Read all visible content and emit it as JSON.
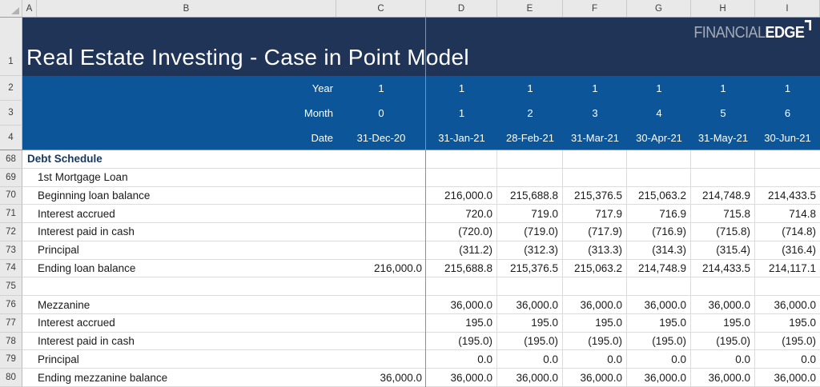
{
  "app": {
    "title": "Real Estate Investing - Case in Point Model",
    "logo": {
      "part1": "FINANCIAL",
      "part2": "EDGE"
    }
  },
  "colors": {
    "navy": "#1F3456",
    "band_blue": "#0B5598",
    "section_text": "#17375E",
    "pane_line": "#8F8F8F",
    "gridline": "#DCDCDC",
    "header_bg": "#E9E9E9"
  },
  "grid": {
    "column_headers": [
      "A",
      "B",
      "C",
      "D",
      "E",
      "F",
      "G",
      "H",
      "I"
    ],
    "title_row": {
      "num": "1"
    },
    "frozen_rows": [
      {
        "num": "2",
        "label": "Year",
        "c": "1",
        "values": [
          "1",
          "1",
          "1",
          "1",
          "1",
          "1"
        ]
      },
      {
        "num": "3",
        "label": "Month",
        "c": "0",
        "values": [
          "1",
          "2",
          "3",
          "4",
          "5",
          "6"
        ]
      },
      {
        "num": "4",
        "label": "Date",
        "c": "31-Dec-20",
        "values": [
          "31-Jan-21",
          "28-Feb-21",
          "31-Mar-21",
          "30-Apr-21",
          "31-May-21",
          "30-Jun-21"
        ]
      }
    ],
    "rows": [
      {
        "num": "68",
        "label": "Debt Schedule",
        "style": "section",
        "c": "",
        "values": [
          "",
          "",
          "",
          "",
          "",
          ""
        ]
      },
      {
        "num": "69",
        "label": "1st Mortgage Loan",
        "style": "",
        "c": "",
        "values": [
          "",
          "",
          "",
          "",
          "",
          ""
        ]
      },
      {
        "num": "70",
        "label": "Beginning loan balance",
        "style": "",
        "c": "",
        "values": [
          "216,000.0",
          "215,688.8",
          "215,376.5",
          "215,063.2",
          "214,748.9",
          "214,433.5"
        ]
      },
      {
        "num": "71",
        "label": "Interest accrued",
        "style": "",
        "c": "",
        "values": [
          "720.0",
          "719.0",
          "717.9",
          "716.9",
          "715.8",
          "714.8"
        ]
      },
      {
        "num": "72",
        "label": "Interest paid in cash",
        "style": "",
        "c": "",
        "values": [
          "(720.0)",
          "(719.0)",
          "(717.9)",
          "(716.9)",
          "(715.8)",
          "(714.8)"
        ]
      },
      {
        "num": "73",
        "label": "Principal",
        "style": "",
        "c": "",
        "values": [
          "(311.2)",
          "(312.3)",
          "(313.3)",
          "(314.3)",
          "(315.4)",
          "(316.4)"
        ]
      },
      {
        "num": "74",
        "label": "Ending loan balance",
        "style": "",
        "c": "216,000.0",
        "values": [
          "215,688.8",
          "215,376.5",
          "215,063.2",
          "214,748.9",
          "214,433.5",
          "214,117.1"
        ]
      },
      {
        "num": "75",
        "label": "",
        "style": "",
        "c": "",
        "values": [
          "",
          "",
          "",
          "",
          "",
          ""
        ]
      },
      {
        "num": "76",
        "label": "Mezzanine",
        "style": "",
        "c": "",
        "values": [
          "36,000.0",
          "36,000.0",
          "36,000.0",
          "36,000.0",
          "36,000.0",
          "36,000.0"
        ]
      },
      {
        "num": "77",
        "label": "Interest accrued",
        "style": "",
        "c": "",
        "values": [
          "195.0",
          "195.0",
          "195.0",
          "195.0",
          "195.0",
          "195.0"
        ]
      },
      {
        "num": "78",
        "label": "Interest paid in cash",
        "style": "",
        "c": "",
        "values": [
          "(195.0)",
          "(195.0)",
          "(195.0)",
          "(195.0)",
          "(195.0)",
          "(195.0)"
        ]
      },
      {
        "num": "79",
        "label": "Principal",
        "style": "",
        "c": "",
        "values": [
          "0.0",
          "0.0",
          "0.0",
          "0.0",
          "0.0",
          "0.0"
        ]
      },
      {
        "num": "80",
        "label": "Ending mezzanine balance",
        "style": "",
        "c": "36,000.0",
        "values": [
          "36,000.0",
          "36,000.0",
          "36,000.0",
          "36,000.0",
          "36,000.0",
          "36,000.0"
        ]
      }
    ]
  }
}
